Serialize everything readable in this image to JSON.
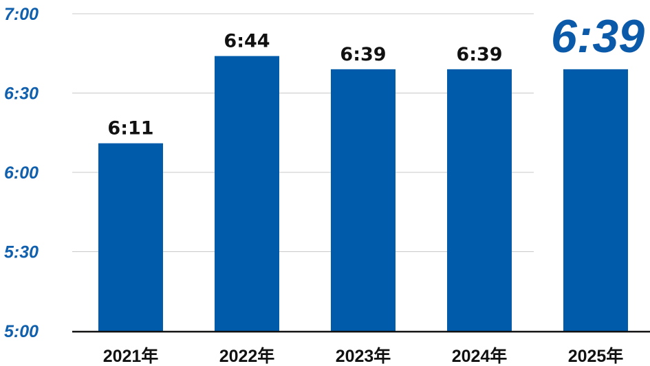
{
  "chart_data": {
    "type": "bar",
    "categories": [
      "2021年",
      "2022年",
      "2023年",
      "2024年",
      "2025年"
    ],
    "values": [
      371,
      404,
      399,
      399,
      399
    ],
    "data_labels": [
      "6:11",
      "6:44",
      "6:39",
      "6:39",
      "6:39"
    ],
    "highlight_index": 4,
    "ylim": [
      300,
      420
    ],
    "yticks": [
      300,
      330,
      360,
      390,
      420
    ],
    "ytick_labels": [
      "5:00",
      "5:30",
      "6:00",
      "6:30",
      "7:00"
    ],
    "grid": true,
    "colors": {
      "bar": "#005bab",
      "ytick": "#1060ae",
      "highlight_label": "#0b5aaa",
      "grid": "#c8c8c8",
      "axis": "#111111"
    }
  }
}
